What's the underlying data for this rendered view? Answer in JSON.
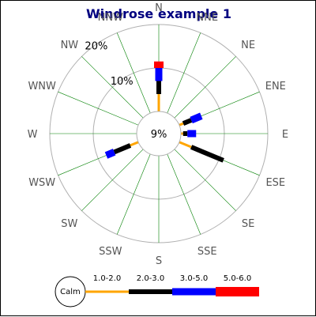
{
  "chart_data": {
    "type": "windrose",
    "title": "Windrose example 1",
    "directions": [
      "N",
      "NNE",
      "NE",
      "ENE",
      "E",
      "ESE",
      "SE",
      "SSE",
      "S",
      "SSW",
      "SW",
      "WSW",
      "W",
      "WNW",
      "NW",
      "NNW"
    ],
    "center_label": "9%",
    "ring_labels": [
      "10%",
      "20%"
    ],
    "range_labels": [
      "1.0-2.0",
      "2.0-3.0",
      "3.0-5.0",
      "5.0-6.0"
    ],
    "range_colors": [
      "#ffa500",
      "#000000",
      "#0000ff",
      "#ff0000"
    ],
    "calm_label": "Calm",
    "petals": [
      {
        "direction": "N",
        "values": [
          4,
          3,
          3,
          1.5
        ]
      },
      {
        "direction": "ENE",
        "values": [
          1,
          2,
          2.5,
          0
        ]
      },
      {
        "direction": "E",
        "values": [
          0.5,
          1,
          2,
          0
        ]
      },
      {
        "direction": "ESE",
        "values": [
          3,
          8,
          0,
          0
        ]
      },
      {
        "direction": "WSW",
        "values": [
          2,
          4,
          2,
          0
        ]
      }
    ]
  }
}
